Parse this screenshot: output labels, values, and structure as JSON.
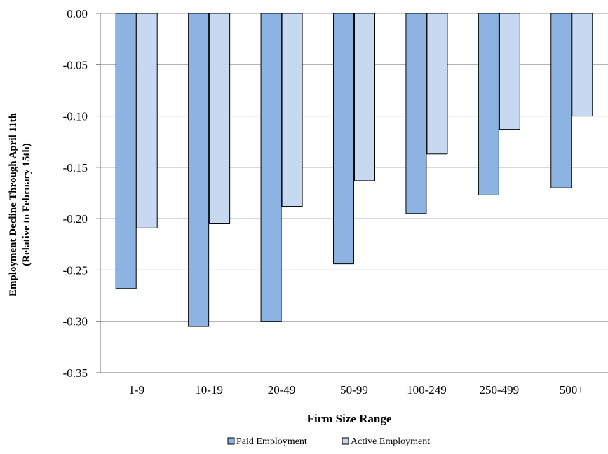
{
  "chart_data": {
    "type": "bar",
    "title": "",
    "xlabel": "Firm Size Range",
    "ylabel_line1": "Employment Decline Through April 11th",
    "ylabel_line2": "(Relative to February 15th)",
    "categories": [
      "1-9",
      "10-19",
      "20-49",
      "50-99",
      "100-249",
      "250-499",
      "500+"
    ],
    "series": [
      {
        "name": "Paid Employment",
        "color": "#8db3e2",
        "values": [
          -0.268,
          -0.305,
          -0.3,
          -0.244,
          -0.195,
          -0.177,
          -0.17
        ]
      },
      {
        "name": "Active Employment",
        "color": "#c6d9f1",
        "values": [
          -0.209,
          -0.205,
          -0.188,
          -0.163,
          -0.137,
          -0.113,
          -0.1
        ]
      }
    ],
    "ylim": [
      -0.35,
      0.0
    ],
    "yticks": [
      "0.00",
      "-0.05",
      "-0.10",
      "-0.15",
      "-0.20",
      "-0.25",
      "-0.30",
      "-0.35"
    ],
    "ytick_values": [
      0.0,
      -0.05,
      -0.1,
      -0.15,
      -0.2,
      -0.25,
      -0.3,
      -0.35
    ],
    "grid": true,
    "legend_position": "bottom"
  }
}
